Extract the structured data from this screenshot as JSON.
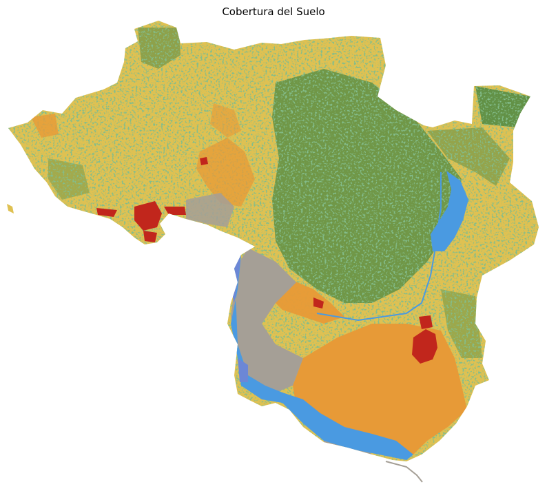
{
  "figure": {
    "title": "Cobertura del Suelo"
  },
  "land_cover_classes": [
    {
      "key": "forest",
      "color": "#3a8243"
    },
    {
      "key": "grassland",
      "color": "#dfc152"
    },
    {
      "key": "cropland",
      "color": "#e79a37"
    },
    {
      "key": "urban",
      "color": "#c1261c"
    },
    {
      "key": "water",
      "color": "#4a9ae1"
    },
    {
      "key": "wetland",
      "color": "#6c87d6"
    },
    {
      "key": "bare",
      "color": "#a59f96"
    }
  ]
}
